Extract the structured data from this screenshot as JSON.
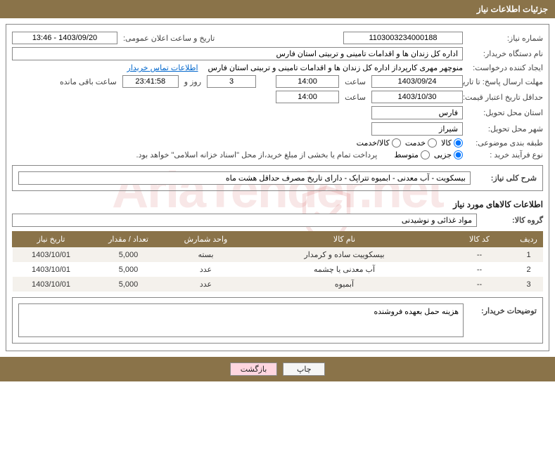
{
  "header": {
    "title": "جزئیات اطلاعات نیاز"
  },
  "form": {
    "need_no_label": "شماره نیاز:",
    "need_no": "1103003234000188",
    "announce_label": "تاریخ و ساعت اعلان عمومی:",
    "announce_value": "1403/09/20 - 13:46",
    "buyer_org_label": "نام دستگاه خریدار:",
    "buyer_org": "اداره کل زندان ها و اقدامات تامینی و تربیتی استان فارس",
    "creator_label": "ایجاد کننده درخواست:",
    "creator": "منوچهر  مهری  کارپرداز اداره کل زندان ها و اقدامات تامینی و تربیتی استان فارس",
    "contact_link": "اطلاعات تماس خریدار",
    "deadline_label": "مهلت ارسال پاسخ: تا تاریخ:",
    "deadline_date": "1403/09/24",
    "time_label": "ساعت",
    "deadline_time": "14:00",
    "remain_days": "3",
    "remain_between": "روز و",
    "remain_time": "23:41:58",
    "remain_suffix": "ساعت باقی مانده",
    "validity_label": "حداقل تاریخ اعتبار قیمت: تا تاریخ:",
    "validity_date": "1403/10/30",
    "validity_time": "14:00",
    "province_label": "استان محل تحویل:",
    "province": "فارس",
    "city_label": "شهر محل تحویل:",
    "city": "شیراز",
    "category_label": "طبقه بندی موضوعی:",
    "cat_goods": "کالا",
    "cat_service": "خدمت",
    "cat_both": "کالا/خدمت",
    "process_label": "نوع فرآیند خرید :",
    "proc_small": "جزیی",
    "proc_medium": "متوسط",
    "proc_note": "پرداخت تمام یا بخشی از مبلغ خرید،از محل \"اسناد خزانه اسلامی\" خواهد بود.",
    "summary_label": "شرح کلی نیاز:",
    "summary": "بیسکویت - آب معدنی - ابمیوه تتراپک - دارای تاریخ مصرف حداقل هشت ماه",
    "goods_section_title": "اطلاعات کالاهای مورد نیاز",
    "group_label": "گروه کالا:",
    "group": "مواد غذائی و نوشیدنی",
    "buyer_notes_label": "توضیحات خریدار:",
    "buyer_notes": "هزینه حمل بعهده فروشنده"
  },
  "table": {
    "columns": [
      "ردیف",
      "کد کالا",
      "نام کالا",
      "واحد شمارش",
      "تعداد / مقدار",
      "تاریخ نیاز"
    ],
    "rows": [
      [
        "1",
        "--",
        "بیسکوییت ساده و کرمدار",
        "بسته",
        "5,000",
        "1403/10/01"
      ],
      [
        "2",
        "--",
        "آب معدنی یا چشمه",
        "عدد",
        "5,000",
        "1403/10/01"
      ],
      [
        "3",
        "--",
        "آبمیوه",
        "عدد",
        "5,000",
        "1403/10/01"
      ]
    ],
    "col_widths": [
      "40px",
      "100px",
      "auto",
      "110px",
      "110px",
      "110px"
    ]
  },
  "footer": {
    "print": "چاپ",
    "back": "بازگشت"
  },
  "watermark": "AriaTender.net",
  "colors": {
    "brand": "#8a7349",
    "link": "#0066cc",
    "btn_back_bg": "#ffd6e0"
  }
}
